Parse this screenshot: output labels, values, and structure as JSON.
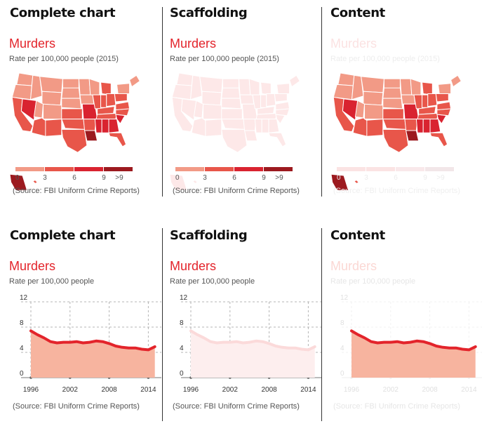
{
  "colors": {
    "accent": "#e3242b",
    "muted_text": "#555555",
    "map_base": "#d95c4e",
    "map_stroke": "#ffffff",
    "area_fill": "#f7b49f",
    "line_stroke": "#e3242b",
    "legend": [
      "#f29a86",
      "#e8564a",
      "#d92330",
      "#9c1a1f"
    ]
  },
  "headings": {
    "complete": "Complete chart",
    "scaffolding": "Scaffolding",
    "content": "Content"
  },
  "map_chart": {
    "title": "Murders",
    "subtitle": "Rate per 100,000 people (2015)",
    "source": "(Source: FBI Uniform Crime Reports)",
    "legend_ticks": [
      "0",
      "3",
      "6",
      "9",
      ">9"
    ]
  },
  "line_chart": {
    "title": "Murders",
    "subtitle": "Rate per 100,000 people",
    "source": "(Source: FBI Uniform Crime Reports)",
    "x_ticks": [
      "1996",
      "2002",
      "2008",
      "2014"
    ],
    "y_ticks": [
      "0",
      "4",
      "8",
      "12"
    ]
  },
  "chart_data": [
    {
      "type": "area",
      "title": "Murders",
      "subtitle": "Rate per 100,000 people",
      "x": [
        1996,
        1997,
        1998,
        1999,
        2000,
        2001,
        2002,
        2003,
        2004,
        2005,
        2006,
        2007,
        2008,
        2009,
        2010,
        2011,
        2012,
        2013,
        2014,
        2015
      ],
      "values": [
        7.4,
        6.8,
        6.3,
        5.7,
        5.5,
        5.6,
        5.6,
        5.7,
        5.5,
        5.6,
        5.8,
        5.7,
        5.4,
        5.0,
        4.8,
        4.7,
        4.7,
        4.5,
        4.4,
        4.9
      ],
      "xlim": [
        1996,
        2016
      ],
      "ylim": [
        0,
        12
      ],
      "grid": true
    },
    {
      "type": "heatmap",
      "title": "Murders",
      "subtitle": "Rate per 100,000 people (2015)",
      "legend_bins": [
        "0",
        "3",
        "6",
        "9",
        ">9"
      ]
    }
  ]
}
